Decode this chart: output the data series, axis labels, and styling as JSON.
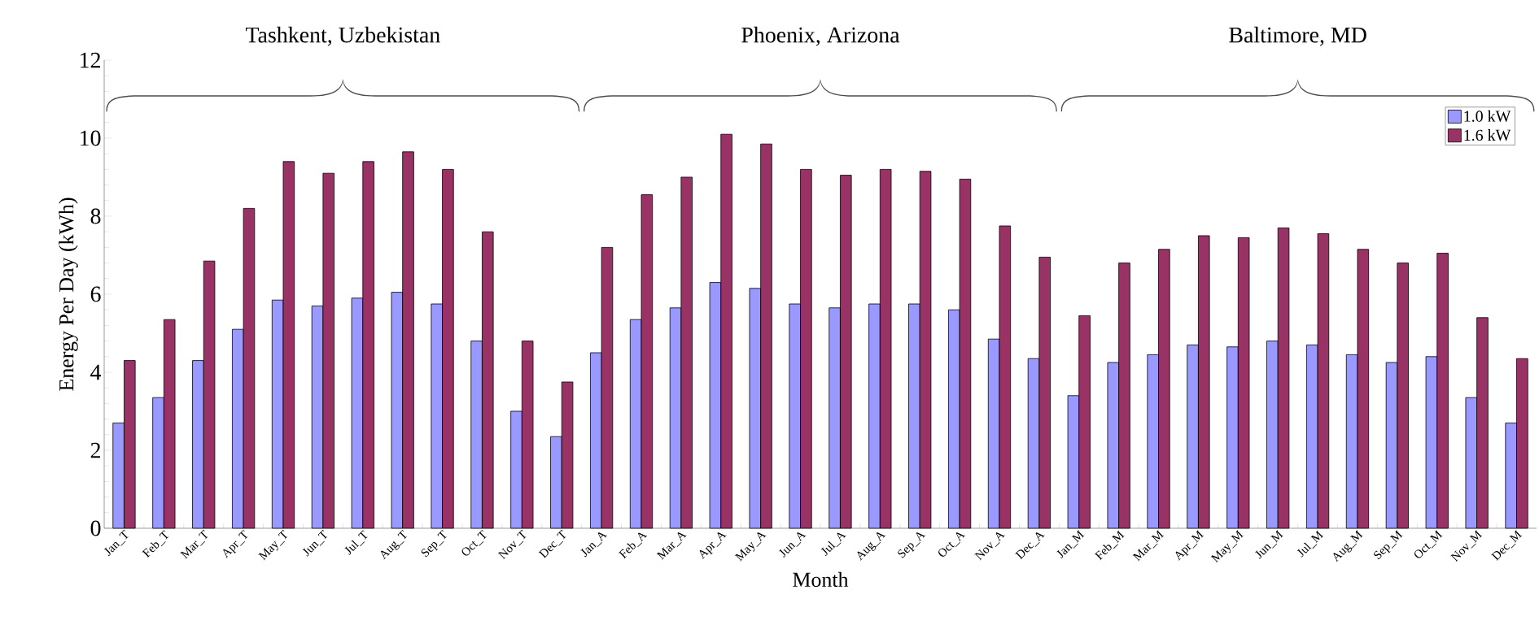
{
  "chart_data": {
    "type": "bar",
    "xlabel": "Month",
    "ylabel": "Energy Per Day (kWh)",
    "annotations": [
      "Tashkent, Uzbekistan",
      "Phoenix, Arizona",
      "Baltimore, MD"
    ],
    "categories": [
      "Jan_T",
      "Feb_T",
      "Mar_T",
      "Apr_T",
      "May_T",
      "Jun_T",
      "Jul_T",
      "Aug_T",
      "Sep_T",
      "Oct_T",
      "Nov_T",
      "Dec_T",
      "Jan_A",
      "Feb_A",
      "Mar_A",
      "Apr_A",
      "May_A",
      "Jun_A",
      "Jul_A",
      "Aug_A",
      "Sep_A",
      "Oct_A",
      "Nov_A",
      "Dec_A",
      "Jan_M",
      "Feb_M",
      "Mar_M",
      "Apr_M",
      "May_M",
      "Jun_M",
      "Jul_M",
      "Aug_M",
      "Sep_M",
      "Oct_M",
      "Nov_M",
      "Dec_M"
    ],
    "series": [
      {
        "name": "1.0 kW",
        "color": "#9999ff",
        "values": [
          2.7,
          3.35,
          4.3,
          5.1,
          5.85,
          5.7,
          5.9,
          6.05,
          5.75,
          4.8,
          3.0,
          2.35,
          4.5,
          5.35,
          5.65,
          6.3,
          6.15,
          5.75,
          5.65,
          5.75,
          5.75,
          5.6,
          4.85,
          4.35,
          3.4,
          4.25,
          4.45,
          4.7,
          4.65,
          4.8,
          4.7,
          4.45,
          4.25,
          4.4,
          3.35,
          2.7
        ]
      },
      {
        "name": "1.6 kW",
        "color": "#993366",
        "values": [
          4.3,
          5.35,
          6.85,
          8.2,
          9.4,
          9.1,
          9.4,
          9.65,
          9.2,
          7.6,
          4.8,
          3.75,
          7.2,
          8.55,
          9.0,
          10.1,
          9.85,
          9.2,
          9.05,
          9.2,
          9.15,
          8.95,
          7.75,
          6.95,
          5.45,
          6.8,
          7.15,
          7.5,
          7.45,
          7.7,
          7.55,
          7.15,
          6.8,
          7.05,
          5.4,
          4.35
        ]
      }
    ],
    "ylim": [
      0,
      12
    ],
    "yticks": [
      0,
      2,
      4,
      6,
      8,
      10,
      12
    ],
    "grid": false,
    "legend": "top right"
  }
}
